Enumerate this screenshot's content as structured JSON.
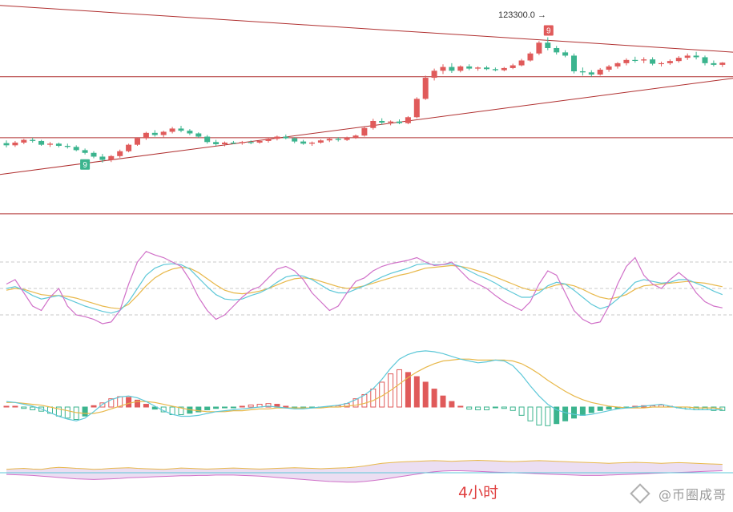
{
  "colors": {
    "up": "#e05a5a",
    "down": "#3bb48e",
    "trendline": "#b03030",
    "k_line": "#d070c8",
    "d_line": "#5ec8d8",
    "j_line": "#e8b84a",
    "dif_line": "#5ec8d8",
    "dea_line": "#e8b84a"
  },
  "annotations": {
    "peak_price": "123300.0",
    "peak_arrow": "→",
    "td_top": "9",
    "td_bottom": "9",
    "timeframe": "4小时"
  },
  "watermark": {
    "icon": "diamond-logo-icon",
    "text": "@币圈成哥"
  },
  "chart_data": {
    "type": "candlestick",
    "interval": "4小时",
    "candles": [
      [
        100,
        100.5,
        99.2,
        99.6
      ],
      [
        99.6,
        100.4,
        99.3,
        100.1
      ],
      [
        100.1,
        100.8,
        99.8,
        100.6
      ],
      [
        100.6,
        101.0,
        100.1,
        100.4
      ],
      [
        100.4,
        100.6,
        99.5,
        99.7
      ],
      [
        99.7,
        100.2,
        99.3,
        99.9
      ],
      [
        99.9,
        100.1,
        99.2,
        99.5
      ],
      [
        99.5,
        99.9,
        99.0,
        99.3
      ],
      [
        99.3,
        99.6,
        98.5,
        98.7
      ],
      [
        98.7,
        99.0,
        97.9,
        98.2
      ],
      [
        98.2,
        98.5,
        97.2,
        97.5
      ],
      [
        97.5,
        98.0,
        96.4,
        96.9
      ],
      [
        96.9,
        97.8,
        96.5,
        97.6
      ],
      [
        97.6,
        98.8,
        97.3,
        98.5
      ],
      [
        98.5,
        99.9,
        98.3,
        99.7
      ],
      [
        99.7,
        101.1,
        99.5,
        100.9
      ],
      [
        100.9,
        102.1,
        100.6,
        101.9
      ],
      [
        101.9,
        102.4,
        101.2,
        101.5
      ],
      [
        101.5,
        102.3,
        101.1,
        102.1
      ],
      [
        102.1,
        103.0,
        101.8,
        102.7
      ],
      [
        102.7,
        103.2,
        102.0,
        102.3
      ],
      [
        102.3,
        102.6,
        101.5,
        101.8
      ],
      [
        101.8,
        102.0,
        101.0,
        101.2
      ],
      [
        101.2,
        101.5,
        99.9,
        100.2
      ],
      [
        100.2,
        100.6,
        99.5,
        99.8
      ],
      [
        99.8,
        100.3,
        99.4,
        100.1
      ],
      [
        100.1,
        100.4,
        99.8,
        100.0
      ],
      [
        100.0,
        100.4,
        99.7,
        100.2
      ],
      [
        100.2,
        100.5,
        99.8,
        100.1
      ],
      [
        100.1,
        100.6,
        99.9,
        100.4
      ],
      [
        100.4,
        101.0,
        100.1,
        100.8
      ],
      [
        100.8,
        101.4,
        100.5,
        101.2
      ],
      [
        101.2,
        101.6,
        100.7,
        100.9
      ],
      [
        100.9,
        101.1,
        100.0,
        100.3
      ],
      [
        100.3,
        100.6,
        99.7,
        99.9
      ],
      [
        99.9,
        100.3,
        99.5,
        100.1
      ],
      [
        100.1,
        100.7,
        99.9,
        100.5
      ],
      [
        100.5,
        101.0,
        100.2,
        100.8
      ],
      [
        100.8,
        101.1,
        100.3,
        100.6
      ],
      [
        100.6,
        101.2,
        100.4,
        101.0
      ],
      [
        101.0,
        101.6,
        100.8,
        101.4
      ],
      [
        101.4,
        103.0,
        101.2,
        102.8
      ],
      [
        102.8,
        104.5,
        102.5,
        104.1
      ],
      [
        104.1,
        104.6,
        103.4,
        103.8
      ],
      [
        103.8,
        104.2,
        103.3,
        104.0
      ],
      [
        104.0,
        104.4,
        103.5,
        103.7
      ],
      [
        103.7,
        105.0,
        103.5,
        104.8
      ],
      [
        104.8,
        108.5,
        104.6,
        108.2
      ],
      [
        108.2,
        112.5,
        108.0,
        112.1
      ],
      [
        112.1,
        113.8,
        111.6,
        113.4
      ],
      [
        113.4,
        114.6,
        112.8,
        114.1
      ],
      [
        114.1,
        114.8,
        113.0,
        113.4
      ],
      [
        113.4,
        114.4,
        113.1,
        114.2
      ],
      [
        114.2,
        114.6,
        113.5,
        113.8
      ],
      [
        113.8,
        114.2,
        113.4,
        114.0
      ],
      [
        114.0,
        114.3,
        113.5,
        113.7
      ],
      [
        113.7,
        114.0,
        113.3,
        113.5
      ],
      [
        113.5,
        114.1,
        113.3,
        113.9
      ],
      [
        113.9,
        114.7,
        113.7,
        114.4
      ],
      [
        114.4,
        115.6,
        114.2,
        115.3
      ],
      [
        115.3,
        116.9,
        115.1,
        116.6
      ],
      [
        116.6,
        118.9,
        116.3,
        118.6
      ],
      [
        118.6,
        119.6,
        117.2,
        117.6
      ],
      [
        117.6,
        118.0,
        116.4,
        116.8
      ],
      [
        116.8,
        117.2,
        115.9,
        116.2
      ],
      [
        116.2,
        116.6,
        112.9,
        113.3
      ],
      [
        113.3,
        114.0,
        112.5,
        113.1
      ],
      [
        113.1,
        113.5,
        112.3,
        112.7
      ],
      [
        112.7,
        113.9,
        112.5,
        113.6
      ],
      [
        113.6,
        114.5,
        113.2,
        114.2
      ],
      [
        114.2,
        115.0,
        113.8,
        114.8
      ],
      [
        114.8,
        115.7,
        114.4,
        115.4
      ],
      [
        115.4,
        116.0,
        114.9,
        115.3
      ],
      [
        115.3,
        115.9,
        114.8,
        115.5
      ],
      [
        115.5,
        115.9,
        114.4,
        114.7
      ],
      [
        114.7,
        115.1,
        114.2,
        114.8
      ],
      [
        114.8,
        115.5,
        114.5,
        115.2
      ],
      [
        115.2,
        116.1,
        114.9,
        115.8
      ],
      [
        115.8,
        116.6,
        115.4,
        116.2
      ],
      [
        116.2,
        116.9,
        115.5,
        115.9
      ],
      [
        115.9,
        116.2,
        114.4,
        114.8
      ],
      [
        114.8,
        115.3,
        114.2,
        114.5
      ],
      [
        114.5,
        115.0,
        114.1,
        114.9
      ]
    ],
    "trendlines": [
      {
        "name": "upper-trendline",
        "from": [
          0,
          125.5
        ],
        "to": [
          82,
          116.8
        ]
      },
      {
        "name": "lower-trendline",
        "from": [
          0,
          94.2
        ],
        "to": [
          82,
          112.1
        ]
      },
      {
        "name": "resistance-line",
        "from": [
          0,
          112.3
        ],
        "to": [
          82,
          112.3
        ]
      },
      {
        "name": "middle-line",
        "from": [
          0,
          101.0
        ],
        "to": [
          82,
          101.0
        ]
      },
      {
        "name": "support-line",
        "from": [
          0,
          86.9
        ],
        "to": [
          82,
          86.9
        ]
      }
    ],
    "kdj": {
      "reference_levels": [
        80,
        50,
        20
      ],
      "k": [
        55,
        60,
        45,
        30,
        25,
        40,
        50,
        30,
        20,
        18,
        15,
        10,
        12,
        25,
        55,
        80,
        92,
        88,
        85,
        80,
        75,
        60,
        40,
        25,
        15,
        20,
        30,
        40,
        48,
        52,
        62,
        72,
        75,
        70,
        60,
        45,
        35,
        25,
        30,
        45,
        58,
        62,
        70,
        75,
        78,
        80,
        82,
        85,
        80,
        76,
        77,
        80,
        70,
        60,
        55,
        50,
        42,
        35,
        30,
        25,
        35,
        55,
        70,
        65,
        45,
        25,
        15,
        10,
        12,
        30,
        55,
        75,
        85,
        65,
        55,
        50,
        60,
        68,
        60,
        45,
        35,
        30,
        28
      ],
      "d": [
        50,
        52,
        48,
        42,
        38,
        40,
        42,
        38,
        34,
        30,
        27,
        24,
        22,
        25,
        35,
        50,
        65,
        73,
        77,
        78,
        77,
        72,
        62,
        52,
        43,
        38,
        37,
        38,
        42,
        45,
        50,
        57,
        63,
        65,
        64,
        60,
        54,
        48,
        45,
        45,
        49,
        53,
        58,
        63,
        67,
        70,
        73,
        77,
        78,
        77,
        77,
        78,
        75,
        70,
        65,
        61,
        56,
        50,
        45,
        40,
        40,
        45,
        53,
        57,
        55,
        48,
        40,
        32,
        27,
        30,
        38,
        47,
        57,
        60,
        58,
        56,
        57,
        60,
        60,
        56,
        52,
        47,
        43
      ],
      "j": [
        48,
        50,
        49,
        46,
        43,
        42,
        42,
        41,
        39,
        36,
        33,
        30,
        28,
        27,
        32,
        42,
        53,
        62,
        68,
        72,
        74,
        73,
        68,
        61,
        54,
        48,
        45,
        44,
        45,
        47,
        50,
        54,
        58,
        61,
        62,
        61,
        58,
        55,
        52,
        50,
        51,
        53,
        56,
        59,
        62,
        65,
        67,
        70,
        73,
        74,
        75,
        76,
        75,
        73,
        70,
        67,
        63,
        59,
        55,
        51,
        48,
        48,
        51,
        54,
        55,
        53,
        49,
        44,
        40,
        38,
        40,
        43,
        49,
        53,
        54,
        55,
        56,
        57,
        58,
        57,
        56,
        54,
        52
      ]
    },
    "macd": {
      "dif": [
        0.6,
        0.5,
        0.3,
        0.1,
        -0.2,
        -0.6,
        -1.0,
        -1.3,
        -1.5,
        -1.2,
        -0.5,
        0.3,
        0.8,
        1.1,
        1.2,
        1.0,
        0.6,
        0.1,
        -0.4,
        -0.8,
        -1.0,
        -1.0,
        -0.9,
        -0.7,
        -0.5,
        -0.4,
        -0.3,
        -0.2,
        -0.1,
        0.0,
        0.1,
        0.0,
        -0.1,
        -0.2,
        -0.2,
        -0.1,
        0.0,
        0.1,
        0.2,
        0.4,
        0.8,
        1.3,
        2.0,
        3.0,
        4.2,
        5.2,
        5.7,
        6.0,
        6.1,
        6.0,
        5.8,
        5.5,
        5.2,
        5.0,
        4.8,
        4.9,
        5.1,
        5.0,
        4.5,
        3.5,
        2.3,
        1.2,
        0.3,
        -0.3,
        -0.6,
        -0.8,
        -0.9,
        -0.8,
        -0.6,
        -0.4,
        -0.2,
        -0.1,
        0.0,
        0.1,
        0.2,
        0.3,
        0.1,
        -0.1,
        -0.2,
        -0.3,
        -0.3,
        -0.3,
        -0.3
      ],
      "dea": [
        0.5,
        0.5,
        0.4,
        0.3,
        0.2,
        0.0,
        -0.2,
        -0.4,
        -0.6,
        -0.7,
        -0.7,
        -0.5,
        -0.2,
        0.1,
        0.4,
        0.6,
        0.6,
        0.5,
        0.3,
        0.1,
        -0.1,
        -0.3,
        -0.4,
        -0.5,
        -0.5,
        -0.5,
        -0.4,
        -0.4,
        -0.3,
        -0.2,
        -0.2,
        -0.1,
        -0.1,
        -0.1,
        -0.1,
        -0.1,
        -0.1,
        0.0,
        0.0,
        0.1,
        0.2,
        0.4,
        0.7,
        1.2,
        1.8,
        2.5,
        3.2,
        3.8,
        4.3,
        4.7,
        5.0,
        5.1,
        5.2,
        5.2,
        5.1,
        5.1,
        5.1,
        5.1,
        5.0,
        4.7,
        4.2,
        3.6,
        2.9,
        2.3,
        1.7,
        1.2,
        0.8,
        0.5,
        0.3,
        0.1,
        0.0,
        -0.1,
        -0.1,
        -0.1,
        0.0,
        0.0,
        0.0,
        0.0,
        0.0,
        -0.1,
        -0.1,
        -0.1,
        -0.2
      ],
      "histogram": [
        0.1,
        0.0,
        -0.2,
        -0.4,
        -0.6,
        -0.9,
        -1.3,
        -1.6,
        -1.8,
        -1.3,
        0.2,
        0.6,
        1.2,
        1.5,
        1.4,
        1.0,
        0.4,
        -0.3,
        -0.7,
        -1.1,
        -1.1,
        -0.9,
        -0.7,
        -0.4,
        -0.2,
        -0.1,
        -0.1,
        0.1,
        0.3,
        0.4,
        0.5,
        0.4,
        0.0,
        -0.2,
        -0.2,
        -0.1,
        -0.1,
        0.1,
        0.2,
        0.5,
        1.2,
        1.8,
        2.6,
        3.6,
        4.8,
        5.4,
        5.0,
        4.4,
        3.6,
        2.6,
        1.6,
        0.8,
        0.1,
        -0.3,
        -0.4,
        -0.4,
        -0.1,
        -0.2,
        -0.5,
        -1.2,
        -2.0,
        -2.6,
        -2.7,
        -2.4,
        -2.0,
        -1.6,
        -1.2,
        -0.8,
        -0.5,
        -0.3,
        -0.2,
        -0.1,
        0.1,
        0.2,
        0.2,
        0.3,
        0.1,
        -0.1,
        -0.3,
        -0.4,
        -0.4,
        -0.5,
        -0.5
      ]
    },
    "volume_band": {
      "upper": [
        1.0,
        1.2,
        1.3,
        1.1,
        1.0,
        1.4,
        1.6,
        1.5,
        1.3,
        1.2,
        1.0,
        1.1,
        1.3,
        1.4,
        1.5,
        1.3,
        1.2,
        1.1,
        1.0,
        1.2,
        1.4,
        1.3,
        1.2,
        1.1,
        1.2,
        1.3,
        1.4,
        1.3,
        1.2,
        1.1,
        1.2,
        1.3,
        1.4,
        1.5,
        1.4,
        1.3,
        1.2,
        1.3,
        1.4,
        1.5,
        1.7,
        2.0,
        2.4,
        2.8,
        3.0,
        3.2,
        3.3,
        3.4,
        3.5,
        3.6,
        3.5,
        3.4,
        3.5,
        3.6,
        3.7,
        3.6,
        3.5,
        3.4,
        3.3,
        3.4,
        3.5,
        3.6,
        3.5,
        3.4,
        3.3,
        3.2,
        3.1,
        3.0,
        2.9,
        2.8,
        2.9,
        3.0,
        3.1,
        3.0,
        2.9,
        2.8,
        2.9,
        3.0,
        2.9,
        2.8,
        2.7,
        2.6,
        2.5
      ],
      "lower": [
        -0.5,
        -0.6,
        -0.7,
        -0.8,
        -1.0,
        -1.2,
        -1.4,
        -1.6,
        -1.8,
        -1.9,
        -2.0,
        -1.9,
        -1.8,
        -1.7,
        -1.5,
        -1.4,
        -1.3,
        -1.2,
        -1.1,
        -1.0,
        -0.9,
        -0.9,
        -0.8,
        -0.8,
        -0.7,
        -0.7,
        -0.7,
        -0.8,
        -0.9,
        -1.0,
        -1.2,
        -1.4,
        -1.6,
        -1.8,
        -2.0,
        -2.2,
        -2.4,
        -2.6,
        -2.7,
        -2.8,
        -2.8,
        -2.6,
        -2.3,
        -2.0,
        -1.6,
        -1.2,
        -0.8,
        -0.4,
        0.0,
        0.3,
        0.5,
        0.6,
        0.6,
        0.5,
        0.4,
        0.3,
        0.2,
        0.1,
        0.0,
        -0.1,
        -0.2,
        -0.3,
        -0.4,
        -0.5,
        -0.6,
        -0.7,
        -0.8,
        -0.8,
        -0.8,
        -0.7,
        -0.6,
        -0.5,
        -0.4,
        -0.3,
        -0.2,
        -0.1,
        0.0,
        0.1,
        0.2,
        0.3,
        0.4,
        0.5,
        0.6
      ]
    }
  }
}
